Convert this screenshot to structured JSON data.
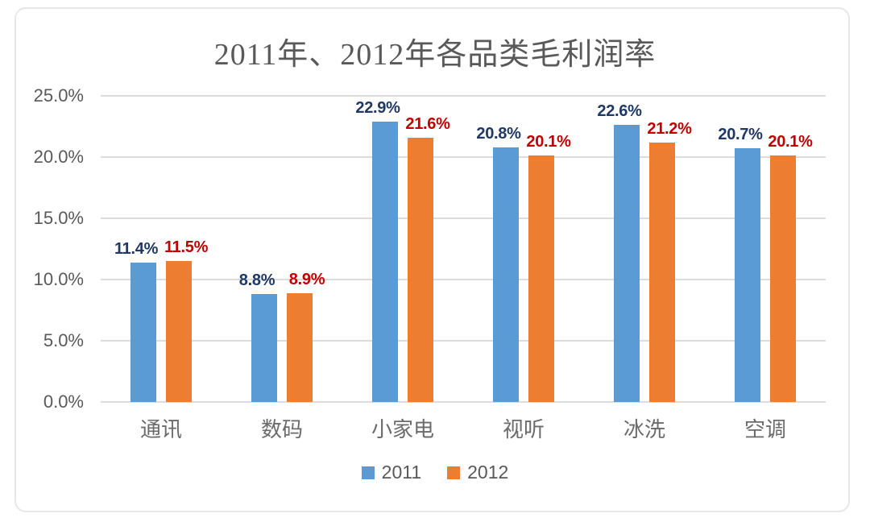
{
  "title": "2011年、2012年各品类毛利润率",
  "chart_data": {
    "type": "bar",
    "title": "2011年、2012年各品类毛利润率",
    "categories": [
      "通讯",
      "数码",
      "小家电",
      "视听",
      "冰洗",
      "空调"
    ],
    "series": [
      {
        "name": "2011",
        "values": [
          11.4,
          8.8,
          22.9,
          20.8,
          22.6,
          20.7
        ],
        "labels": [
          "11.4%",
          "8.8%",
          "22.9%",
          "20.8%",
          "22.6%",
          "20.7%"
        ],
        "bar_color": "#5B9BD5",
        "label_color": "#1F3864"
      },
      {
        "name": "2012",
        "values": [
          11.5,
          8.9,
          21.6,
          20.1,
          21.2,
          20.1
        ],
        "labels": [
          "11.5%",
          "8.9%",
          "21.6%",
          "20.1%",
          "21.2%",
          "20.1%"
        ],
        "bar_color": "#ED7D31",
        "label_color": "#C00000"
      }
    ],
    "y_axis": {
      "ticks": [
        "0.0%",
        "5.0%",
        "10.0%",
        "15.0%",
        "20.0%",
        "25.0%"
      ],
      "range": [
        0,
        25
      ],
      "grid": true
    },
    "legend": {
      "position": "bottom",
      "entries": [
        "2011",
        "2012"
      ]
    },
    "colors": {
      "grid": "#dcdcdc",
      "axis_text": "#595959",
      "frame_border": "#e7e7e7"
    },
    "xlabel": "",
    "ylabel": ""
  }
}
